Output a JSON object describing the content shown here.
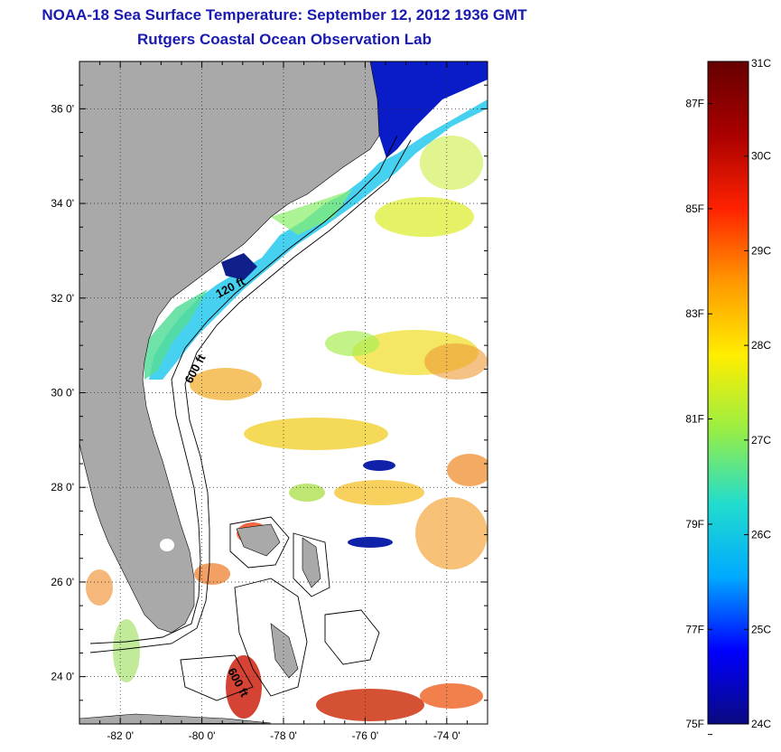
{
  "title": {
    "line1": "NOAA-18 Sea Surface Temperature:  September 12, 2012 1936 GMT",
    "line2": "Rutgers Coastal Ocean Observation Lab"
  },
  "map": {
    "lat_range": [
      23,
      37
    ],
    "lon_range": [
      -83,
      -73
    ],
    "lat_ticks": [
      {
        "value": 24,
        "label": "24 0'"
      },
      {
        "value": 26,
        "label": "26 0'"
      },
      {
        "value": 28,
        "label": "28 0'"
      },
      {
        "value": 30,
        "label": "30 0'"
      },
      {
        "value": 32,
        "label": "32 0'"
      },
      {
        "value": 34,
        "label": "34 0'"
      },
      {
        "value": 36,
        "label": "36 0'"
      }
    ],
    "lon_ticks": [
      {
        "value": -82,
        "label": "-82 0'"
      },
      {
        "value": -80,
        "label": "-80 0'"
      },
      {
        "value": -78,
        "label": "-78 0'"
      },
      {
        "value": -76,
        "label": "-76 0'"
      },
      {
        "value": -74,
        "label": "-74 0'"
      }
    ],
    "contour_labels": {
      "c120": "120 ft",
      "c600": "600 ft",
      "c600s": "600 ft"
    },
    "colors": {
      "land": "#a9a9a9",
      "background": "#ffffff"
    }
  },
  "colorbar": {
    "celsius_range": [
      24,
      31
    ],
    "celsius_labels": [
      {
        "value": 31,
        "label": "31C"
      },
      {
        "value": 30,
        "label": "30C"
      },
      {
        "value": 29,
        "label": "29C"
      },
      {
        "value": 28,
        "label": "28C"
      },
      {
        "value": 27,
        "label": "27C"
      },
      {
        "value": 26,
        "label": "26C"
      },
      {
        "value": 25,
        "label": "25C"
      },
      {
        "value": 24,
        "label": "24C"
      }
    ],
    "fahrenheit_labels": [
      {
        "value": 87,
        "label": "87F"
      },
      {
        "value": 85,
        "label": "85F"
      },
      {
        "value": 83,
        "label": "83F"
      },
      {
        "value": 81,
        "label": "81F"
      },
      {
        "value": 79,
        "label": "79F"
      },
      {
        "value": 77,
        "label": "77F"
      },
      {
        "value": 75,
        "label": "75F"
      }
    ],
    "stops": [
      "#0a0a80",
      "#0000ff",
      "#00aaff",
      "#22ddcc",
      "#99ee44",
      "#ffee00",
      "#ff9900",
      "#ff2200",
      "#aa0000",
      "#660000"
    ]
  }
}
